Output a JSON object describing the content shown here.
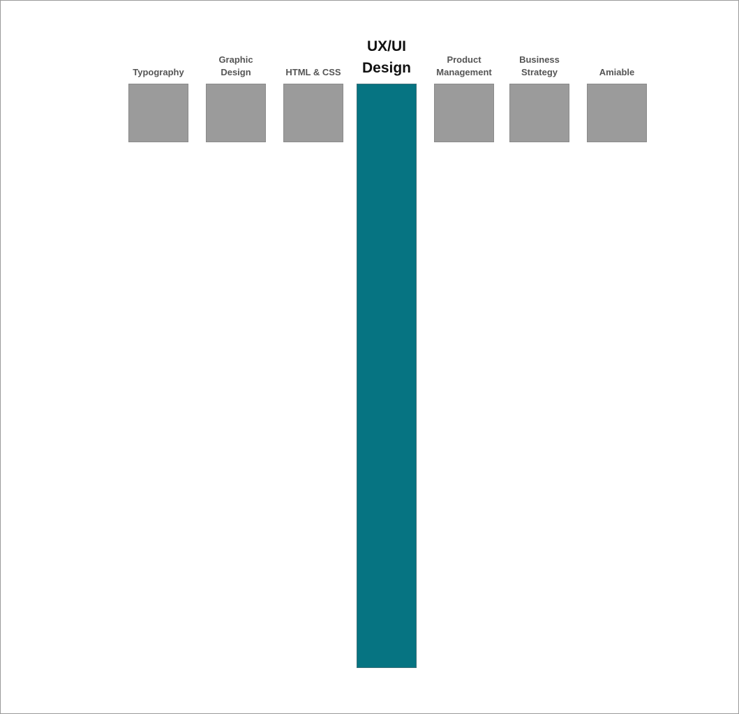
{
  "skills": [
    {
      "label": "Typography",
      "featured": false
    },
    {
      "label": "Graphic\nDesign",
      "featured": false
    },
    {
      "label": "HTML & CSS",
      "featured": false
    },
    {
      "label": "UX/UI\nDesign",
      "featured": true
    },
    {
      "label": "Product\nManagement",
      "featured": false
    },
    {
      "label": "Business\nStrategy",
      "featured": false
    },
    {
      "label": "Amiable",
      "featured": false
    }
  ],
  "colors": {
    "featured_bar": "#067482",
    "skill_box": "#9b9b9b",
    "label_text": "#555555",
    "featured_label_text": "#111111"
  }
}
